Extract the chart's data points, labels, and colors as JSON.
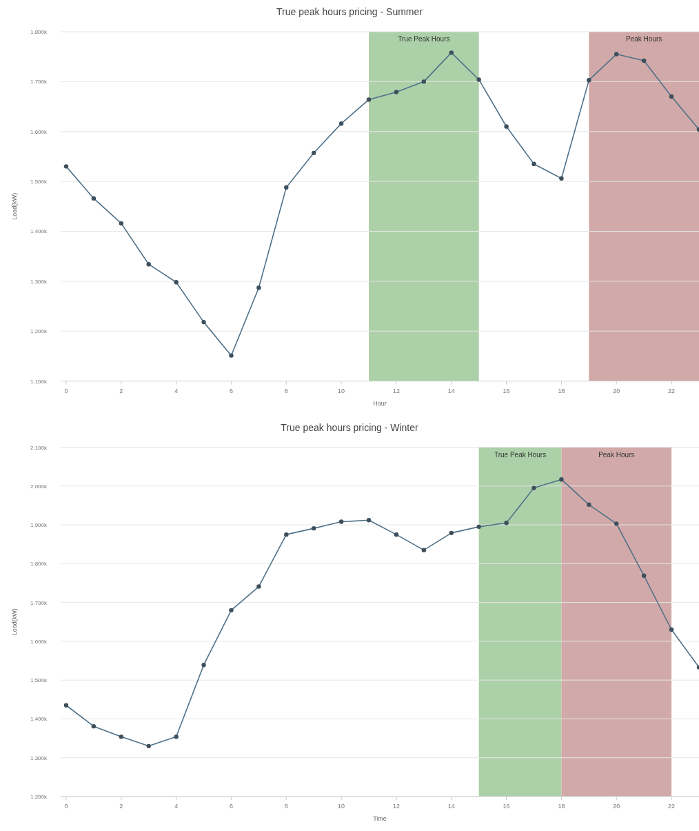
{
  "chart_data": [
    {
      "type": "line",
      "title": "True peak hours pricing - Summer",
      "xlabel": "Hour",
      "ylabel": "Load(kW)",
      "x": [
        0,
        1,
        2,
        3,
        4,
        5,
        6,
        7,
        8,
        9,
        10,
        11,
        12,
        13,
        14,
        15,
        16,
        17,
        18,
        19,
        20,
        21,
        22,
        23
      ],
      "series": [
        {
          "color": "#4f7189",
          "values": [
            1530,
            1466,
            1416,
            1334,
            1298,
            1218,
            1151,
            1287,
            1488,
            1557,
            1616,
            1664,
            1679,
            1700,
            1758,
            1704,
            1610,
            1535,
            1506,
            1703,
            1755,
            1742,
            1670,
            1604
          ]
        }
      ],
      "xlim": [
        -0.2,
        23
      ],
      "xticks": [
        0,
        2,
        4,
        6,
        8,
        10,
        12,
        14,
        16,
        18,
        20,
        22
      ],
      "ylim": [
        1100,
        1800
      ],
      "yticks": [
        {
          "value": 1100,
          "label": "1.100k"
        },
        {
          "value": 1200,
          "label": "1.200k"
        },
        {
          "value": 1300,
          "label": "1.300k"
        },
        {
          "value": 1400,
          "label": "1.400k"
        },
        {
          "value": 1500,
          "label": "1.500k"
        },
        {
          "value": 1600,
          "label": "1.600k"
        },
        {
          "value": 1700,
          "label": "1.700k"
        },
        {
          "value": 1800,
          "label": "1.800k"
        }
      ],
      "bands": [
        {
          "axis": "x",
          "from": 11,
          "to": 15,
          "label": "True Peak Hours",
          "color": "#acd0a8"
        },
        {
          "axis": "x",
          "from": 19,
          "to": 23,
          "label": "Peak Hours",
          "color": "#d1a9a9"
        }
      ],
      "grid": "y",
      "marker": "circle",
      "line_style": "solid"
    },
    {
      "type": "line",
      "title": "True peak hours pricing - Winter",
      "xlabel": "Time",
      "ylabel": "Load(kW)",
      "x": [
        0,
        1,
        2,
        3,
        4,
        5,
        6,
        7,
        8,
        9,
        10,
        11,
        12,
        13,
        14,
        15,
        16,
        17,
        18,
        19,
        20,
        21,
        22,
        23
      ],
      "series": [
        {
          "color": "#4f7189",
          "values": [
            1435,
            1381,
            1354,
            1330,
            1354,
            1539,
            1680,
            1741,
            1875,
            1891,
            1908,
            1912,
            1875,
            1835,
            1879,
            1895,
            1905,
            1995,
            2017,
            1952,
            1903,
            1769,
            1630,
            1533
          ]
        }
      ],
      "xlim": [
        -0.2,
        23
      ],
      "xticks": [
        0,
        2,
        4,
        6,
        8,
        10,
        12,
        14,
        16,
        18,
        20,
        22
      ],
      "ylim": [
        1200,
        2100
      ],
      "yticks": [
        {
          "value": 1200,
          "label": "1.200k"
        },
        {
          "value": 1300,
          "label": "1.300k"
        },
        {
          "value": 1400,
          "label": "1.400k"
        },
        {
          "value": 1500,
          "label": "1.500k"
        },
        {
          "value": 1600,
          "label": "1.600k"
        },
        {
          "value": 1700,
          "label": "1.700k"
        },
        {
          "value": 1800,
          "label": "1.800k"
        },
        {
          "value": 1900,
          "label": "1.900k"
        },
        {
          "value": 2000,
          "label": "2.000k"
        },
        {
          "value": 2100,
          "label": "2.100k"
        }
      ],
      "bands": [
        {
          "axis": "x",
          "from": 15,
          "to": 18,
          "label": "True Peak Hours",
          "color": "#acd0a8"
        },
        {
          "axis": "x",
          "from": 18,
          "to": 22,
          "label": "Peak Hours",
          "color": "#d1a9a9"
        }
      ],
      "grid": "y",
      "marker": "circle",
      "line_style": "solid"
    }
  ]
}
